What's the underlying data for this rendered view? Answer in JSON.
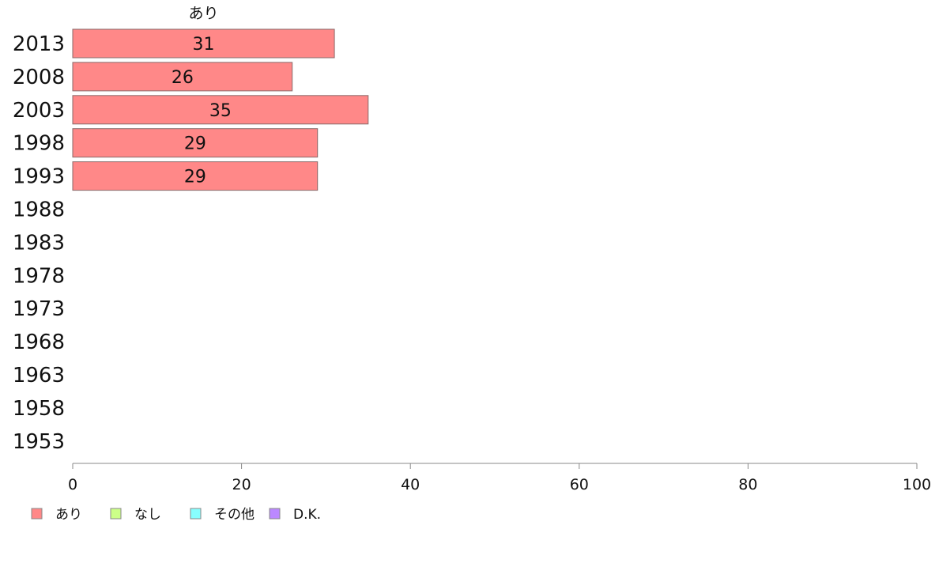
{
  "chart_data": {
    "type": "bar",
    "orientation": "horizontal",
    "stacked": true,
    "categories": [
      "2013",
      "2008",
      "2003",
      "1998",
      "1993",
      "1988",
      "1983",
      "1978",
      "1973",
      "1968",
      "1963",
      "1958",
      "1953"
    ],
    "series": [
      {
        "name": "あり",
        "color": "#ff8888",
        "values": [
          31,
          26,
          35,
          29,
          29,
          null,
          null,
          null,
          null,
          null,
          null,
          null,
          null
        ]
      },
      {
        "name": "なし",
        "color": "#ccff88",
        "values": [
          null,
          null,
          null,
          null,
          null,
          null,
          null,
          null,
          null,
          null,
          null,
          null,
          null
        ]
      },
      {
        "name": "その他",
        "color": "#88ffff",
        "values": [
          null,
          null,
          null,
          null,
          null,
          null,
          null,
          null,
          null,
          null,
          null,
          null,
          null
        ]
      },
      {
        "name": "D.K.",
        "color": "#bb88ff",
        "values": [
          null,
          null,
          null,
          null,
          null,
          null,
          null,
          null,
          null,
          null,
          null,
          null,
          null
        ]
      }
    ],
    "data_labels": [
      "31",
      "26",
      "35",
      "29",
      "29"
    ],
    "top_series_label": "あり",
    "xlim": [
      0,
      100
    ],
    "xticks": [
      "0",
      "20",
      "40",
      "60",
      "80",
      "100"
    ],
    "grid": false,
    "legend_position": "bottom-left"
  }
}
